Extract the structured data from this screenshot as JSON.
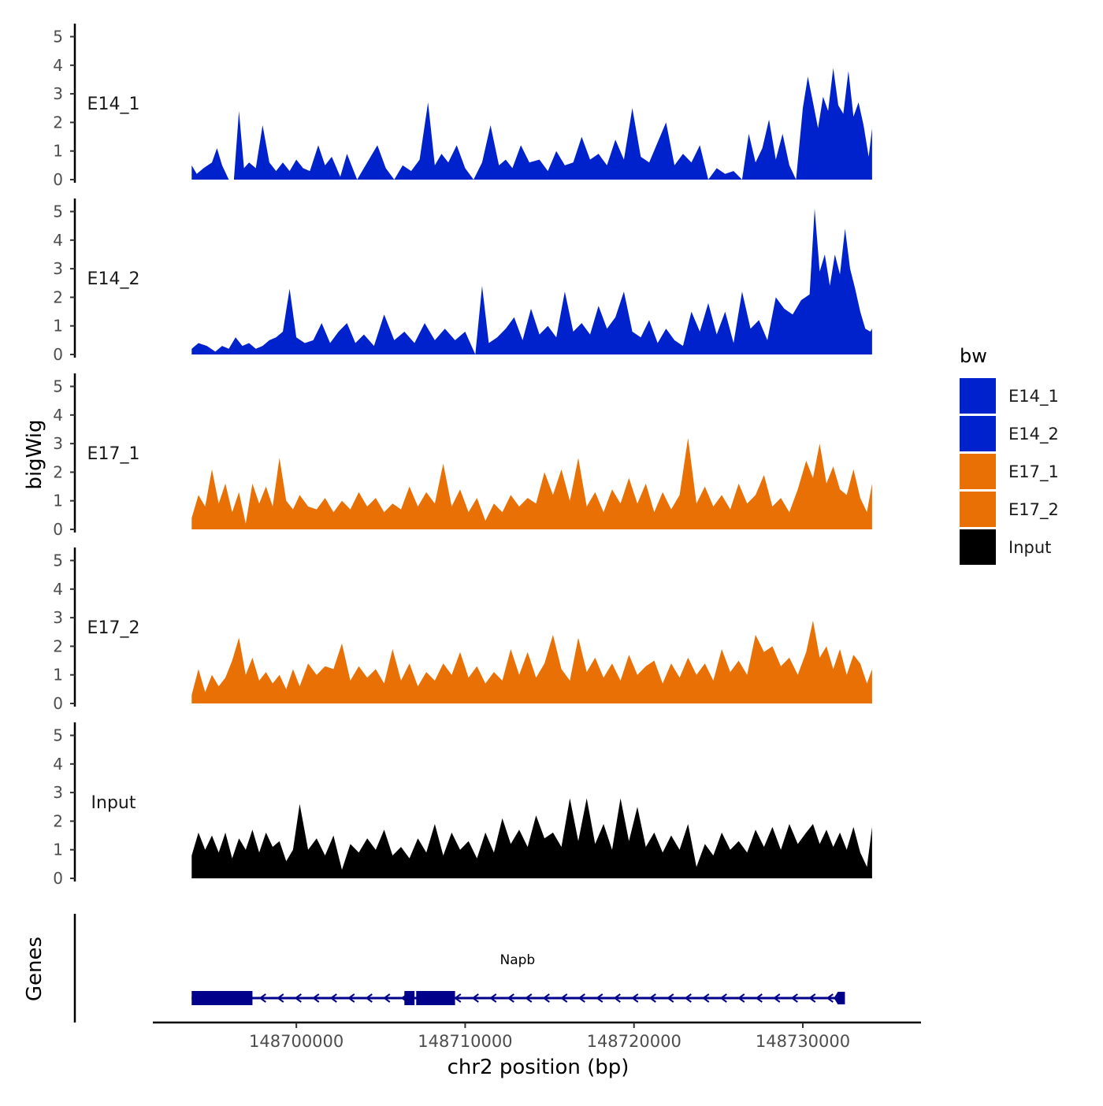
{
  "chart_data": {
    "type": "area",
    "ylabel": "bigWig",
    "xlabel": "chr2 position (bp)",
    "xlim": [
      148691500,
      148737000
    ],
    "x_ticks": [
      148700000,
      148710000,
      148720000,
      148730000
    ],
    "x_tick_labels": [
      "148700000",
      "148710000",
      "148720000",
      "148730000"
    ],
    "ylim": [
      0,
      5.4
    ],
    "y_ticks": [
      0,
      1,
      2,
      3,
      4,
      5
    ],
    "y_tick_labels": [
      "0",
      "1",
      "2",
      "3",
      "4",
      "5"
    ],
    "legend": {
      "title": "bw",
      "position": "right",
      "entries": [
        {
          "label": "E14_1",
          "color": "#0022CC"
        },
        {
          "label": "E14_2",
          "color": "#0022CC"
        },
        {
          "label": "E17_1",
          "color": "#E87004"
        },
        {
          "label": "E17_2",
          "color": "#E87004"
        },
        {
          "label": "Input",
          "color": "#000000"
        }
      ]
    },
    "series": [
      {
        "name": "E14_1",
        "label": "E14_1",
        "color": "#0022CC",
        "x": [
          148693800,
          148694100,
          148694500,
          148695000,
          148695300,
          148695600,
          148696000,
          148696300,
          148696600,
          148696900,
          148697200,
          148697600,
          148698000,
          148698400,
          148698800,
          148699200,
          148699600,
          148700000,
          148700400,
          148700800,
          148701300,
          148701700,
          148702100,
          148702600,
          148703000,
          148703600,
          148704200,
          148704800,
          148705300,
          148705800,
          148706300,
          148706800,
          148707300,
          148707800,
          148708200,
          148708600,
          148709000,
          148709500,
          148710000,
          148710500,
          148711000,
          148711500,
          148712000,
          148712400,
          148712800,
          148713300,
          148713800,
          148714400,
          148714900,
          148715400,
          148715900,
          148716400,
          148716900,
          148717400,
          148717900,
          148718400,
          148718900,
          148719400,
          148719900,
          148720400,
          148720900,
          148721400,
          148721900,
          148722400,
          148722900,
          148723400,
          148723900,
          148724400,
          148724900,
          148725400,
          148725900,
          148726400,
          148726800,
          148727200,
          148727600,
          148728000,
          148728400,
          148728800,
          148729200,
          148729600,
          148730000,
          148730300,
          148730600,
          148730900,
          148731200,
          148731500,
          148731800,
          148732100,
          148732400,
          148732700,
          148733000,
          148733300,
          148733600,
          148733900,
          148734100
        ],
        "values": [
          0.5,
          0.2,
          0.4,
          0.6,
          1.1,
          0.5,
          0.0,
          0.0,
          2.4,
          0.4,
          0.6,
          0.4,
          1.9,
          0.6,
          0.3,
          0.6,
          0.3,
          0.7,
          0.4,
          0.3,
          1.2,
          0.5,
          0.8,
          0.1,
          0.9,
          0.0,
          0.6,
          1.2,
          0.4,
          0.0,
          0.5,
          0.3,
          0.7,
          2.7,
          0.5,
          0.9,
          0.6,
          1.2,
          0.4,
          0.0,
          0.6,
          1.9,
          0.5,
          0.7,
          0.4,
          1.2,
          0.6,
          0.7,
          0.3,
          1.0,
          0.5,
          0.6,
          1.5,
          0.7,
          0.9,
          0.5,
          1.4,
          0.7,
          2.5,
          0.8,
          0.6,
          1.3,
          2.0,
          0.5,
          0.9,
          0.6,
          1.2,
          0.0,
          0.4,
          0.2,
          0.3,
          0.0,
          1.6,
          0.6,
          1.1,
          2.1,
          0.7,
          1.6,
          0.5,
          0.0,
          2.5,
          3.6,
          2.7,
          1.8,
          2.9,
          2.4,
          3.9,
          2.6,
          2.3,
          3.8,
          2.2,
          2.7,
          1.9,
          0.8,
          1.8
        ]
      },
      {
        "name": "E14_2",
        "label": "E14_2",
        "color": "#0022CC",
        "x": [
          148693800,
          148694200,
          148694700,
          148695200,
          148695600,
          148696000,
          148696400,
          148696800,
          148697200,
          148697600,
          148698000,
          148698400,
          148698800,
          148699200,
          148699600,
          148700000,
          148700500,
          148701000,
          148701500,
          148702000,
          148702500,
          148703000,
          148703500,
          148704000,
          148704600,
          148705200,
          148705800,
          148706400,
          148707000,
          148707600,
          148708200,
          148708800,
          148709400,
          148710000,
          148710600,
          148711000,
          148711400,
          148711900,
          148712400,
          148712900,
          148713400,
          148713900,
          148714400,
          148714900,
          148715400,
          148715900,
          148716400,
          148716900,
          148717400,
          148717900,
          148718400,
          148718900,
          148719400,
          148719900,
          148720400,
          148720900,
          148721400,
          148721900,
          148722400,
          148722900,
          148723400,
          148723900,
          148724400,
          148724900,
          148725400,
          148725900,
          148726400,
          148726900,
          148727400,
          148727900,
          148728400,
          148728900,
          148729400,
          148729900,
          148730400,
          148730700,
          148731000,
          148731300,
          148731600,
          148731900,
          148732200,
          148732500,
          148732800,
          148733100,
          148733400,
          148733700,
          148734000,
          148734100
        ],
        "values": [
          0.2,
          0.4,
          0.3,
          0.1,
          0.3,
          0.2,
          0.6,
          0.3,
          0.4,
          0.2,
          0.3,
          0.5,
          0.6,
          0.8,
          2.3,
          0.6,
          0.4,
          0.5,
          1.1,
          0.4,
          0.8,
          1.1,
          0.4,
          0.7,
          0.3,
          1.4,
          0.5,
          0.8,
          0.4,
          1.1,
          0.5,
          0.9,
          0.5,
          0.8,
          0.0,
          2.4,
          0.4,
          0.6,
          0.9,
          1.3,
          0.5,
          1.6,
          0.7,
          1.0,
          0.6,
          2.2,
          0.8,
          1.1,
          0.7,
          1.7,
          0.9,
          1.3,
          2.2,
          0.8,
          0.6,
          1.2,
          0.4,
          0.9,
          0.5,
          0.3,
          1.5,
          0.8,
          1.8,
          0.7,
          1.5,
          0.4,
          2.2,
          0.9,
          1.2,
          0.5,
          2.0,
          1.6,
          1.4,
          1.9,
          2.1,
          5.1,
          2.9,
          3.5,
          2.4,
          3.5,
          2.8,
          4.4,
          3.0,
          2.3,
          1.5,
          0.9,
          0.8,
          0.9
        ]
      },
      {
        "name": "E17_1",
        "label": "E17_1",
        "color": "#E87004",
        "x": [
          148693800,
          148694200,
          148694600,
          148695000,
          148695400,
          148695800,
          148696200,
          148696600,
          148697000,
          148697400,
          148697800,
          148698200,
          148698600,
          148699000,
          148699400,
          148699800,
          148700200,
          148700700,
          148701200,
          148701700,
          148702200,
          148702700,
          148703200,
          148703700,
          148704200,
          148704700,
          148705200,
          148705700,
          148706200,
          148706700,
          148707200,
          148707700,
          148708200,
          148708700,
          148709200,
          148709700,
          148710200,
          148710700,
          148711200,
          148711700,
          148712200,
          148712700,
          148713200,
          148713700,
          148714200,
          148714700,
          148715200,
          148715700,
          148716200,
          148716700,
          148717200,
          148717700,
          148718200,
          148718700,
          148719200,
          148719700,
          148720200,
          148720700,
          148721200,
          148721700,
          148722200,
          148722700,
          148723200,
          148723700,
          148724200,
          148724700,
          148725200,
          148725700,
          148726200,
          148726700,
          148727200,
          148727700,
          148728200,
          148728700,
          148729200,
          148729700,
          148730200,
          148730600,
          148731000,
          148731400,
          148731800,
          148732200,
          148732600,
          148733000,
          148733400,
          148733800,
          148734100
        ],
        "values": [
          0.4,
          1.2,
          0.8,
          2.1,
          0.9,
          1.6,
          0.6,
          1.3,
          0.2,
          1.6,
          0.9,
          1.5,
          0.8,
          2.5,
          1.0,
          0.7,
          1.2,
          0.8,
          0.7,
          1.1,
          0.6,
          1.0,
          0.7,
          1.3,
          0.8,
          1.1,
          0.6,
          0.9,
          0.7,
          1.5,
          0.8,
          1.3,
          0.9,
          2.3,
          0.8,
          1.4,
          0.6,
          1.1,
          0.3,
          0.9,
          0.6,
          1.2,
          0.8,
          1.1,
          0.9,
          2.0,
          1.2,
          2.1,
          1.0,
          2.5,
          0.8,
          1.3,
          0.6,
          1.4,
          0.9,
          1.8,
          0.9,
          1.6,
          0.6,
          1.3,
          0.7,
          1.2,
          3.2,
          0.9,
          1.5,
          0.8,
          1.2,
          0.7,
          1.6,
          0.9,
          1.2,
          1.9,
          0.8,
          1.1,
          0.6,
          1.4,
          2.4,
          1.8,
          3.0,
          1.6,
          2.2,
          1.4,
          1.2,
          2.1,
          1.1,
          0.6,
          1.6
        ]
      },
      {
        "name": "E17_2",
        "label": "E17_2",
        "color": "#E87004",
        "x": [
          148693800,
          148694200,
          148694600,
          148695000,
          148695400,
          148695800,
          148696200,
          148696600,
          148697000,
          148697400,
          148697800,
          148698200,
          148698600,
          148699000,
          148699400,
          148699800,
          148700200,
          148700700,
          148701200,
          148701700,
          148702200,
          148702700,
          148703200,
          148703700,
          148704200,
          148704700,
          148705200,
          148705700,
          148706200,
          148706700,
          148707200,
          148707700,
          148708200,
          148708700,
          148709200,
          148709700,
          148710200,
          148710700,
          148711200,
          148711700,
          148712200,
          148712700,
          148713200,
          148713700,
          148714200,
          148714700,
          148715200,
          148715700,
          148716200,
          148716700,
          148717200,
          148717700,
          148718200,
          148718700,
          148719200,
          148719700,
          148720200,
          148720700,
          148721200,
          148721700,
          148722200,
          148722700,
          148723200,
          148723700,
          148724200,
          148724700,
          148725200,
          148725700,
          148726200,
          148726700,
          148727200,
          148727700,
          148728200,
          148728700,
          148729200,
          148729700,
          148730200,
          148730600,
          148731000,
          148731400,
          148731800,
          148732200,
          148732600,
          148733000,
          148733400,
          148733800,
          148734100
        ],
        "values": [
          0.3,
          1.2,
          0.4,
          1.0,
          0.6,
          0.9,
          1.5,
          2.3,
          1.0,
          1.6,
          0.8,
          1.1,
          0.7,
          1.0,
          0.5,
          1.2,
          0.6,
          1.4,
          1.0,
          1.3,
          1.2,
          2.1,
          0.8,
          1.3,
          0.9,
          1.2,
          0.7,
          1.9,
          0.8,
          1.4,
          0.6,
          1.1,
          0.8,
          1.4,
          1.0,
          1.8,
          0.9,
          1.3,
          0.7,
          1.1,
          0.8,
          1.9,
          1.0,
          1.8,
          0.9,
          1.4,
          2.4,
          1.2,
          0.8,
          2.3,
          1.1,
          1.6,
          0.9,
          1.4,
          0.8,
          1.7,
          1.0,
          1.3,
          1.5,
          0.7,
          1.4,
          0.9,
          1.6,
          1.0,
          1.4,
          0.8,
          1.9,
          1.1,
          1.5,
          1.0,
          2.4,
          1.8,
          2.0,
          1.3,
          1.6,
          1.0,
          1.8,
          2.9,
          1.6,
          2.0,
          1.2,
          1.9,
          1.0,
          1.7,
          1.4,
          0.7,
          1.2
        ]
      },
      {
        "name": "Input",
        "label": "Input",
        "color": "#000000",
        "x": [
          148693800,
          148694200,
          148694600,
          148695000,
          148695400,
          148695800,
          148696200,
          148696600,
          148697000,
          148697400,
          148697800,
          148698200,
          148698600,
          148699000,
          148699400,
          148699800,
          148700200,
          148700700,
          148701200,
          148701700,
          148702200,
          148702700,
          148703200,
          148703700,
          148704200,
          148704700,
          148705200,
          148705700,
          148706200,
          148706700,
          148707200,
          148707700,
          148708200,
          148708700,
          148709200,
          148709700,
          148710200,
          148710700,
          148711200,
          148711700,
          148712200,
          148712700,
          148713200,
          148713700,
          148714200,
          148714700,
          148715200,
          148715700,
          148716200,
          148716700,
          148717200,
          148717700,
          148718200,
          148718700,
          148719200,
          148719700,
          148720200,
          148720700,
          148721200,
          148721700,
          148722200,
          148722700,
          148723200,
          148723700,
          148724200,
          148724700,
          148725200,
          148725700,
          148726200,
          148726700,
          148727200,
          148727700,
          148728200,
          148728700,
          148729200,
          148729700,
          148730200,
          148730600,
          148731000,
          148731400,
          148731800,
          148732200,
          148732600,
          148733000,
          148733400,
          148733800,
          148734100
        ],
        "values": [
          0.8,
          1.6,
          1.0,
          1.5,
          0.9,
          1.6,
          0.7,
          1.4,
          1.0,
          1.7,
          0.9,
          1.6,
          1.1,
          1.3,
          0.6,
          1.0,
          2.6,
          1.0,
          1.4,
          0.8,
          1.5,
          0.3,
          1.2,
          0.9,
          1.4,
          1.0,
          1.7,
          0.8,
          1.1,
          0.7,
          1.4,
          0.9,
          1.9,
          0.8,
          1.6,
          1.0,
          1.3,
          0.7,
          1.6,
          0.9,
          2.1,
          1.2,
          1.7,
          1.1,
          2.2,
          1.4,
          1.6,
          1.1,
          2.8,
          1.3,
          2.8,
          1.2,
          1.9,
          1.0,
          2.8,
          1.3,
          2.5,
          1.1,
          1.6,
          0.9,
          1.5,
          1.0,
          1.9,
          0.4,
          1.2,
          0.8,
          1.6,
          1.0,
          1.3,
          0.9,
          1.7,
          1.1,
          1.8,
          1.0,
          1.9,
          1.2,
          1.6,
          1.9,
          1.2,
          1.7,
          1.1,
          1.6,
          1.0,
          1.8,
          0.9,
          0.4,
          1.8
        ]
      }
    ],
    "gene_track": {
      "label": "Genes",
      "gene_name": "Napb",
      "color": "#00008B",
      "strand": "-",
      "start": 148693800,
      "end": 148732400,
      "exons": [
        [
          148693800,
          148697400
        ],
        [
          148706400,
          148707000
        ],
        [
          148707100,
          148709400
        ]
      ]
    }
  }
}
